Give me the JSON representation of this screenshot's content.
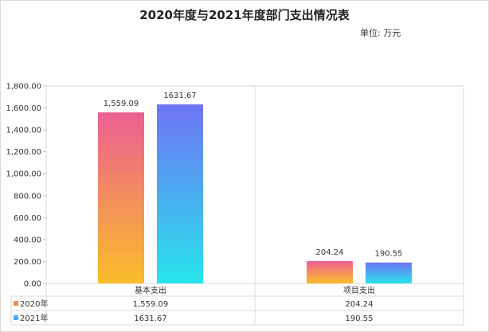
{
  "title": "2020年度与2021年度部门支出情况表",
  "unit_label": "单位:  万元",
  "colors": {
    "series_2020_top": "#ec5f93",
    "series_2020_bottom": "#f9bd29",
    "series_2021_top": "#6f74f4",
    "series_2021_bottom": "#27e4ec",
    "legend_2020": "#f28c4c",
    "legend_2021": "#4aaaf2",
    "grid": "#d9d9d9"
  },
  "chart_data": {
    "type": "bar",
    "title": "2020年度与2021年度部门支出情况表",
    "categories": [
      "基本支出",
      "项目支出"
    ],
    "series": [
      {
        "name": "2020年",
        "values": [
          1559.09,
          204.24
        ],
        "labels": [
          "1,559.09",
          "204.24"
        ]
      },
      {
        "name": "2021年",
        "values": [
          1631.67,
          190.55
        ],
        "labels": [
          "1631.67",
          "190.55"
        ]
      }
    ],
    "ylim": [
      0,
      1800
    ],
    "yticks": [
      "0.00",
      "200.00",
      "400.00",
      "600.00",
      "800.00",
      "1,000.00",
      "1,200.00",
      "1,400.00",
      "1,600.00",
      "1,800.00"
    ],
    "data_table": true,
    "grid": false
  }
}
